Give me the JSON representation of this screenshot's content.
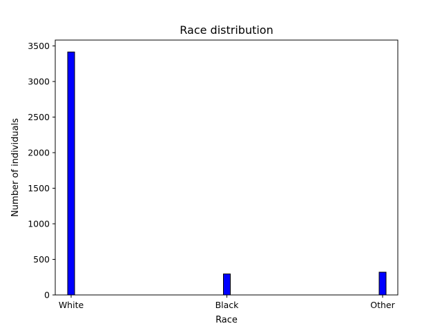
{
  "chart_data": {
    "type": "bar",
    "title": "Race distribution",
    "xlabel": "Race",
    "ylabel": "Number of individuals",
    "categories": [
      "White",
      "Black",
      "Other"
    ],
    "values": [
      3415,
      295,
      320
    ],
    "ylim": [
      0,
      3500
    ],
    "yticks": [
      0,
      500,
      1000,
      1500,
      2000,
      2500,
      3000,
      3500
    ],
    "grid": false,
    "bar_color": "#0000ff",
    "edge_color": "#000000"
  }
}
